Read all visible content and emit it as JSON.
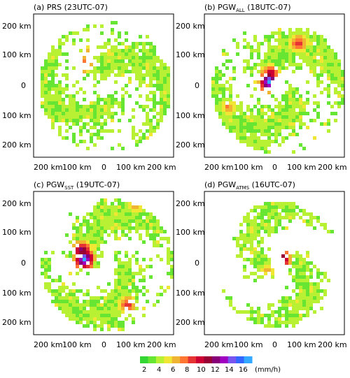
{
  "chart_data": [
    {
      "type": "heatmap",
      "title": "(a) PRS (23UTC-07)",
      "x_ticks": [
        "200 km",
        "100 km",
        "0",
        "100 km",
        "200 km"
      ],
      "y_ticks": [
        "200 km",
        "100 km",
        "0",
        "100 km",
        "200 km"
      ],
      "xlim": [
        -250,
        250
      ],
      "ylim": [
        -250,
        250
      ],
      "eye": [
        0,
        0
      ],
      "features": [
        {
          "center": [
            -75,
            80
          ],
          "intensity_mm_h": 9
        },
        {
          "center": [
            -55,
            130
          ],
          "intensity_mm_h": 6
        },
        {
          "center": [
            10,
            130
          ],
          "intensity_mm_h": 5
        },
        {
          "center": [
            110,
            60
          ],
          "intensity_mm_h": 4
        }
      ]
    },
    {
      "type": "heatmap",
      "title": {
        "main": "(b) PGW",
        "sub": "ALL",
        "tail": " (18UTC-07)"
      },
      "x_ticks": [
        "200 km",
        "100 km",
        "0",
        "100 km",
        "200 km"
      ],
      "y_ticks": [
        "200 km",
        "100 km",
        "0",
        "100 km",
        "200 km"
      ],
      "xlim": [
        -250,
        250
      ],
      "ylim": [
        -250,
        250
      ],
      "eye": [
        10,
        0
      ],
      "features": [
        {
          "center": [
            -25,
            20
          ],
          "intensity_mm_h": 16
        },
        {
          "center": [
            -20,
            45
          ],
          "intensity_mm_h": 11
        },
        {
          "center": [
            80,
            155
          ],
          "intensity_mm_h": 9
        },
        {
          "center": [
            -170,
            -70
          ],
          "intensity_mm_h": 7
        }
      ]
    },
    {
      "type": "heatmap",
      "title": {
        "main": "(c) PGW",
        "sub": "SST",
        "tail": " (19UTC-07)"
      },
      "x_ticks": [
        "200 km",
        "100 km",
        "0",
        "100 km",
        "200 km"
      ],
      "y_ticks": [
        "200 km",
        "100 km",
        "0",
        "100 km",
        "200 km"
      ],
      "xlim": [
        -250,
        250
      ],
      "ylim": [
        -250,
        250
      ],
      "eye": [
        10,
        0
      ],
      "features": [
        {
          "center": [
            -75,
            20
          ],
          "intensity_mm_h": 16
        },
        {
          "center": [
            -85,
            50
          ],
          "intensity_mm_h": 12
        },
        {
          "center": [
            80,
            -140
          ],
          "intensity_mm_h": 9
        },
        {
          "center": [
            110,
            210
          ],
          "intensity_mm_h": 7
        }
      ]
    },
    {
      "type": "heatmap",
      "title": {
        "main": "(d) PGW",
        "sub": "ATMS",
        "tail": " (16UTC-07)"
      },
      "x_ticks": [
        "200 km",
        "100 km",
        "0",
        "100 km",
        "200 km"
      ],
      "y_ticks": [
        "200 km",
        "100 km",
        "0",
        "100 km",
        "200 km"
      ],
      "xlim": [
        -250,
        250
      ],
      "ylim": [
        -250,
        250
      ],
      "eye": [
        10,
        0
      ],
      "features": [
        {
          "center": [
            15,
            20
          ],
          "intensity_mm_h": 14
        },
        {
          "center": [
            -30,
            -20
          ],
          "intensity_mm_h": 6
        }
      ]
    }
  ],
  "colorbar": {
    "ticks": [
      "2",
      "4",
      "6",
      "8",
      "10",
      "12",
      "14",
      "16"
    ],
    "unit": "(mm/h)",
    "colors": [
      "#33d633",
      "#66e633",
      "#b8f033",
      "#f0e633",
      "#f0b433",
      "#ff7733",
      "#e63333",
      "#cc0033",
      "#990033",
      "#880077",
      "#a000c0",
      "#7755ee",
      "#3366ff",
      "#33aaff"
    ]
  }
}
